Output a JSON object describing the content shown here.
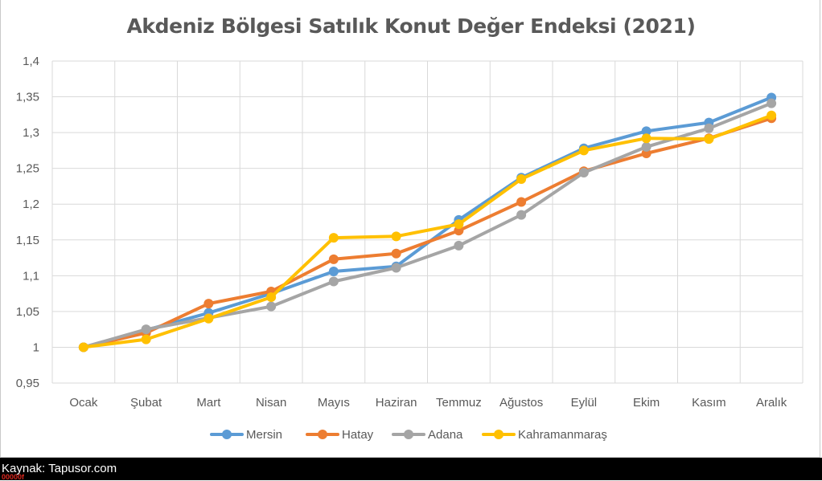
{
  "chart_data": {
    "type": "line",
    "title": "Akdeniz Bölgesi Satılık Konut Değer Endeksi (2021)",
    "categories": [
      "Ocak",
      "Şubat",
      "Mart",
      "Nisan",
      "Mayıs",
      "Haziran",
      "Temmuz",
      "Ağustos",
      "Eylül",
      "Ekim",
      "Kasım",
      "Aralık"
    ],
    "ylim": [
      0.95,
      1.4
    ],
    "yticks": [
      "0,95",
      "1",
      "1,05",
      "1,1",
      "1,15",
      "1,2",
      "1,25",
      "1,3",
      "1,35",
      "1,4"
    ],
    "grid": true,
    "legend_position": "bottom",
    "series": [
      {
        "name": "Mersin",
        "color": "#5b9bd5",
        "values": [
          1.0,
          1.024,
          1.048,
          1.075,
          1.106,
          1.113,
          1.178,
          1.237,
          1.278,
          1.302,
          1.314,
          1.349
        ]
      },
      {
        "name": "Hatay",
        "color": "#ed7d31",
        "values": [
          1.0,
          1.02,
          1.061,
          1.078,
          1.123,
          1.131,
          1.163,
          1.203,
          1.246,
          1.271,
          1.292,
          1.32
        ]
      },
      {
        "name": "Adana",
        "color": "#a5a5a5",
        "values": [
          1.0,
          1.025,
          1.041,
          1.057,
          1.092,
          1.111,
          1.142,
          1.185,
          1.244,
          1.28,
          1.306,
          1.341
        ]
      },
      {
        "name": "Kahramanmaraş",
        "color": "#ffc000",
        "values": [
          1.0,
          1.011,
          1.04,
          1.07,
          1.153,
          1.155,
          1.172,
          1.235,
          1.275,
          1.292,
          1.291,
          1.324
        ]
      }
    ]
  },
  "footer": {
    "source": "Kaynak: Tapusor.com",
    "mark": "00000f"
  }
}
